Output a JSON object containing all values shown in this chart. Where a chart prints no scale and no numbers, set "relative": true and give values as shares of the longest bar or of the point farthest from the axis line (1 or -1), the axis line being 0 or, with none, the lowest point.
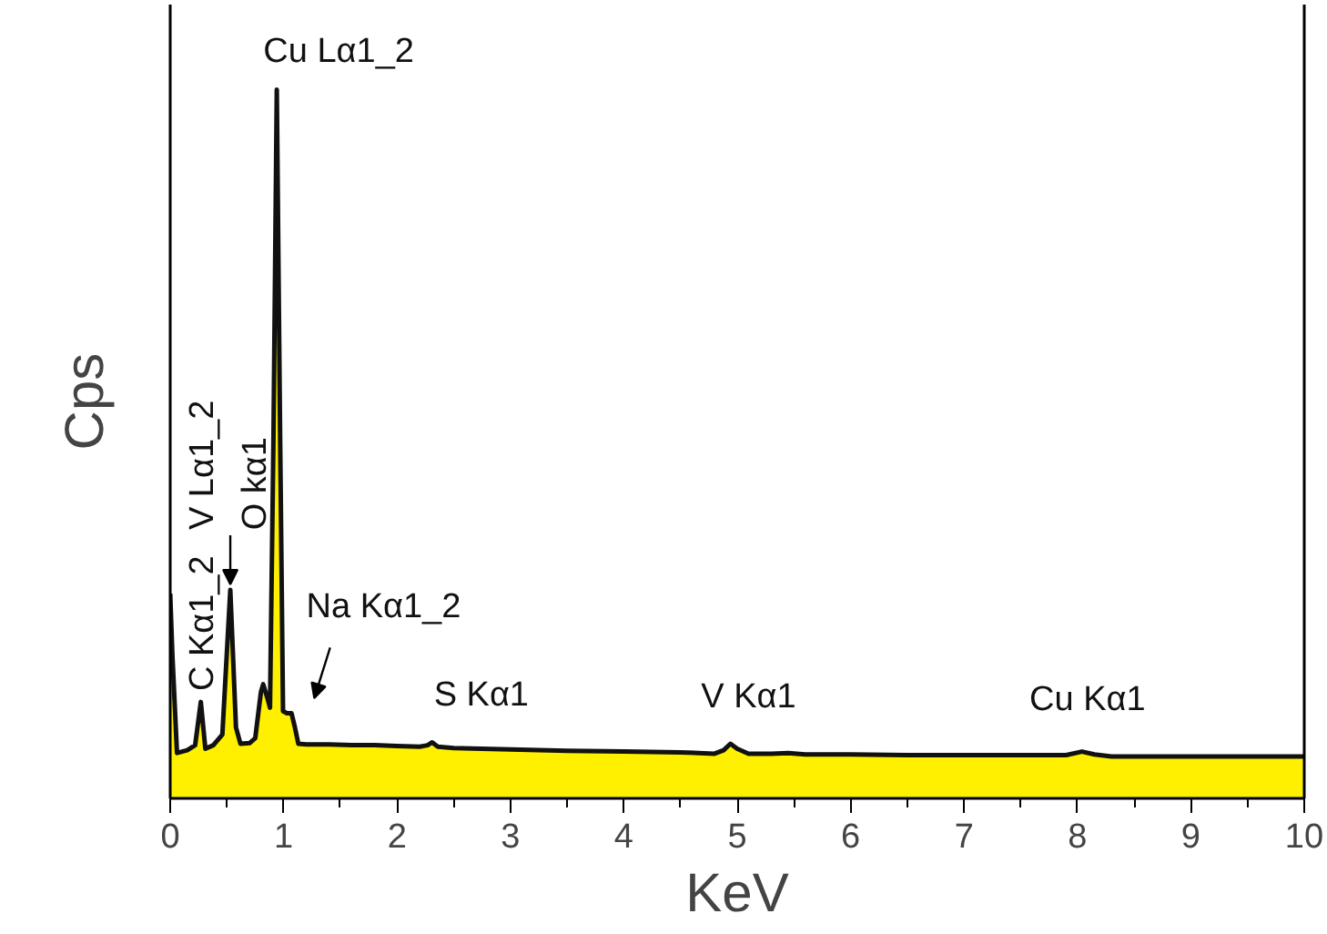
{
  "chart_data": {
    "type": "area",
    "relative": true,
    "xlabel": "KeV",
    "ylabel": "Cps",
    "x": [
      0,
      0.02,
      0.06,
      0.15,
      0.22,
      0.27,
      0.31,
      0.38,
      0.46,
      0.53,
      0.58,
      0.62,
      0.7,
      0.75,
      0.8,
      0.82,
      0.86,
      0.88,
      0.91,
      0.94,
      0.97,
      0.995,
      1.03,
      1.07,
      1.1,
      1.13,
      1.2,
      1.4,
      1.6,
      1.8,
      2.0,
      2.2,
      2.27,
      2.31,
      2.36,
      2.5,
      3.0,
      3.5,
      4.0,
      4.5,
      4.8,
      4.88,
      4.94,
      5.0,
      5.1,
      5.3,
      5.45,
      5.6,
      6.0,
      6.5,
      7.0,
      7.5,
      7.9,
      8.04,
      8.15,
      8.3,
      9.0,
      10.0
    ],
    "series": [
      {
        "color": "#fff000",
        "values": [
          0.289,
          0.2,
          0.064,
          0.068,
          0.075,
          0.136,
          0.07,
          0.075,
          0.09,
          0.294,
          0.1,
          0.077,
          0.078,
          0.085,
          0.15,
          0.161,
          0.14,
          0.128,
          0.5,
          1.0,
          0.5,
          0.123,
          0.12,
          0.12,
          0.1,
          0.077,
          0.076,
          0.076,
          0.075,
          0.075,
          0.074,
          0.073,
          0.075,
          0.079,
          0.073,
          0.071,
          0.069,
          0.067,
          0.066,
          0.065,
          0.063,
          0.068,
          0.077,
          0.07,
          0.063,
          0.063,
          0.064,
          0.062,
          0.062,
          0.061,
          0.061,
          0.061,
          0.061,
          0.066,
          0.062,
          0.059,
          0.059,
          0.059
        ]
      }
    ],
    "xlim": [
      0,
      10
    ],
    "xticks": [
      0,
      1,
      2,
      3,
      4,
      5,
      6,
      7,
      8,
      9,
      10
    ],
    "annotations": [
      {
        "text": "Cu Lα1_2",
        "x": 0.94,
        "y": 1.0
      },
      {
        "text": "C Kα1_2",
        "x": 0.27,
        "y": 0.136
      },
      {
        "text": "V Lα1_2",
        "x": 0.53,
        "y": 0.294
      },
      "O kα1",
      "Na Kα1_2",
      {
        "text": "S Kα1",
        "x": 2.31,
        "y": 0.079
      },
      {
        "text": "V Kα1",
        "x": 4.94,
        "y": 0.077
      },
      {
        "text": "Cu Kα1",
        "x": 8.04,
        "y": 0.066
      }
    ]
  }
}
